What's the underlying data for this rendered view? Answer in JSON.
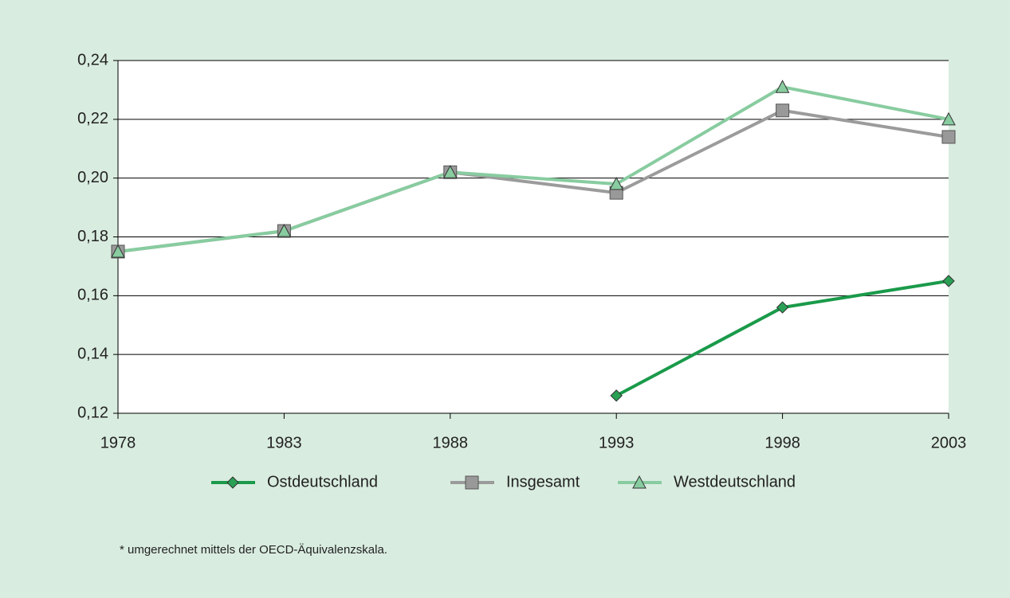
{
  "chart_data": {
    "type": "line",
    "categories": [
      "1978",
      "1983",
      "1988",
      "1993",
      "1998",
      "2003"
    ],
    "series": [
      {
        "name": "Ostdeutschland",
        "color": "#1a9a4a",
        "marker": "diamond",
        "values": [
          null,
          null,
          null,
          0.126,
          0.156,
          0.165
        ]
      },
      {
        "name": "Insgesamt",
        "color": "#9b9b9b",
        "marker": "square",
        "values": [
          0.175,
          0.182,
          0.202,
          0.195,
          0.223,
          0.214
        ]
      },
      {
        "name": "Westdeutschland",
        "color": "#88cca0",
        "marker": "triangle",
        "values": [
          0.175,
          0.182,
          0.202,
          0.198,
          0.231,
          0.22
        ]
      }
    ],
    "ylim": [
      0.12,
      0.24
    ],
    "yticks": [
      {
        "value": 0.12,
        "label": "0,12"
      },
      {
        "value": 0.14,
        "label": "0,14"
      },
      {
        "value": 0.16,
        "label": "0,16"
      },
      {
        "value": 0.18,
        "label": "0,18"
      },
      {
        "value": 0.2,
        "label": "0,20"
      },
      {
        "value": 0.22,
        "label": "0,22"
      },
      {
        "value": 0.24,
        "label": "0,24"
      }
    ],
    "grid": true,
    "legend": "bottom",
    "footnote": "* umgerechnet mittels der OECD-Äquivalenzskala."
  }
}
